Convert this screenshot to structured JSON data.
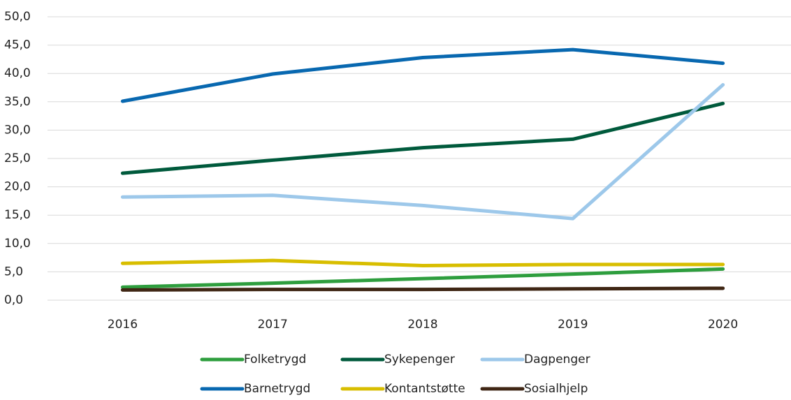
{
  "chart_data": {
    "type": "line",
    "categories": [
      "2016",
      "2017",
      "2018",
      "2019",
      "2020"
    ],
    "series": [
      {
        "name": "Folketrygd",
        "color": "#2e9e3e",
        "values": [
          2.3,
          3.0,
          3.8,
          4.6,
          5.5
        ]
      },
      {
        "name": "Sykepenger",
        "color": "#005a3c",
        "values": [
          22.4,
          24.7,
          26.9,
          28.4,
          34.7
        ]
      },
      {
        "name": "Dagpenger",
        "color": "#9dc8ea",
        "values": [
          18.2,
          18.5,
          16.7,
          14.4,
          38.0
        ]
      },
      {
        "name": "Barnetrygd",
        "color": "#0868b0",
        "values": [
          35.1,
          39.9,
          42.8,
          44.2,
          41.8
        ]
      },
      {
        "name": "Kontantstøtte",
        "color": "#d8be00",
        "values": [
          6.5,
          7.0,
          6.1,
          6.3,
          6.3
        ]
      },
      {
        "name": "Sosialhjelp",
        "color": "#3f2614",
        "values": [
          1.8,
          1.9,
          1.9,
          2.0,
          2.1
        ]
      }
    ],
    "ylim": [
      0,
      50
    ],
    "yticks": [
      {
        "value": 0,
        "label": "0,0"
      },
      {
        "value": 5,
        "label": "5,0"
      },
      {
        "value": 10,
        "label": "10,0"
      },
      {
        "value": 15,
        "label": "15,0"
      },
      {
        "value": 20,
        "label": "20,0"
      },
      {
        "value": 25,
        "label": "25,0"
      },
      {
        "value": 30,
        "label": "30,0"
      },
      {
        "value": 35,
        "label": "35,0"
      },
      {
        "value": 40,
        "label": "40,0"
      },
      {
        "value": 45,
        "label": "45,0"
      },
      {
        "value": 50,
        "label": "50,0"
      }
    ],
    "grid": true,
    "legend": "bottom"
  }
}
